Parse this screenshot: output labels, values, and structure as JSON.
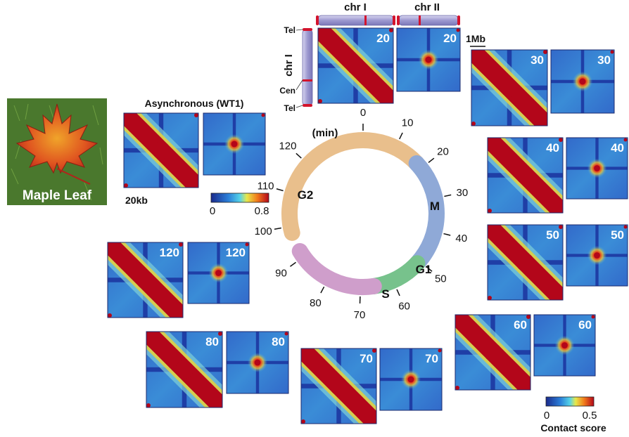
{
  "photo": {
    "caption": "Maple Leaf"
  },
  "async": {
    "title": "Asynchronous (WT1)",
    "scalebar": "20kb"
  },
  "colorbar_small": {
    "min": "0",
    "max": "0.8"
  },
  "colorbar_main": {
    "min": "0",
    "max": "0.5",
    "title": "Contact score"
  },
  "chromosomes": {
    "top_labels": [
      "chr I",
      "chr II"
    ],
    "side_label": "chr I",
    "tel_top": "Tel",
    "cen": "Cen",
    "tel_bottom": "Tel",
    "scalebar": "1Mb"
  },
  "cycle": {
    "unit": "(min)",
    "ticks": [
      "0",
      "10",
      "20",
      "30",
      "40",
      "50",
      "60",
      "70",
      "80",
      "90",
      "100",
      "110",
      "120"
    ],
    "phases": [
      {
        "name": "G2",
        "color": "#e9bf8c"
      },
      {
        "name": "M",
        "color": "#8fa9d7"
      },
      {
        "name": "G1",
        "color": "#77c28c"
      },
      {
        "name": "S",
        "color": "#cf9ecb"
      }
    ]
  },
  "panels": [
    {
      "time": "20",
      "intra_label": "20",
      "inter_label": "20"
    },
    {
      "time": "30",
      "intra_label": "30",
      "inter_label": "30"
    },
    {
      "time": "40",
      "intra_label": "40",
      "inter_label": "40"
    },
    {
      "time": "50",
      "intra_label": "50",
      "inter_label": "50"
    },
    {
      "time": "60",
      "intra_label": "60",
      "inter_label": "60"
    },
    {
      "time": "70",
      "intra_label": "70",
      "inter_label": "70"
    },
    {
      "time": "80",
      "intra_label": "80",
      "inter_label": "80"
    },
    {
      "time": "120",
      "intra_label": "120",
      "inter_label": "120"
    }
  ],
  "colors": {
    "heat_low": "#2a49b8",
    "heat_mid": "#3fa9e0",
    "heat_high": "#b3061a",
    "chromosome_body": "#a9a6d6",
    "chromosome_tip": "#d3132c"
  }
}
